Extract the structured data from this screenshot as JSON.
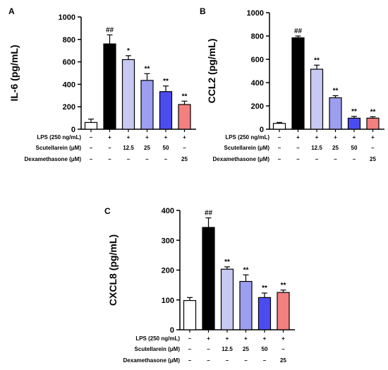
{
  "chart_data": [
    {
      "panel": "A",
      "type": "bar",
      "ylabel": "IL-6 (pg/mL)",
      "ylim": [
        0,
        1000
      ],
      "yticks": [
        0,
        200,
        400,
        600,
        800,
        1000
      ],
      "values": [
        60,
        760,
        620,
        435,
        335,
        220
      ],
      "errors": [
        30,
        80,
        35,
        60,
        50,
        30
      ],
      "significance": [
        "",
        "##",
        "*",
        "**",
        "**",
        "**"
      ],
      "colors": [
        "#ffffff",
        "#000000",
        "#c7c9f3",
        "#9c9ef0",
        "#4b4cf0",
        "#f47f7f"
      ],
      "conditions": [
        {
          "label": "LPS (250 ng/mL)",
          "values": [
            "–",
            "+",
            "+",
            "+",
            "+",
            "+"
          ]
        },
        {
          "label": "Scutellarein (μM)",
          "values": [
            "–",
            "–",
            "12.5",
            "25",
            "50",
            "–"
          ]
        },
        {
          "label": "Dexamethasone (μM)",
          "values": [
            "–",
            "–",
            "–",
            "–",
            "–",
            "25"
          ]
        }
      ]
    },
    {
      "panel": "B",
      "type": "bar",
      "ylabel": "CCL2 (pg/mL)",
      "ylim": [
        0,
        1000
      ],
      "yticks": [
        0,
        200,
        400,
        600,
        800,
        1000
      ],
      "values": [
        50,
        785,
        515,
        270,
        95,
        95
      ],
      "errors": [
        8,
        15,
        35,
        18,
        15,
        12
      ],
      "significance": [
        "",
        "##",
        "**",
        "**",
        "**",
        "**"
      ],
      "colors": [
        "#ffffff",
        "#000000",
        "#c7c9f3",
        "#9c9ef0",
        "#4b4cf0",
        "#f47f7f"
      ],
      "conditions": [
        {
          "label": "LPS (250 ng/mL)",
          "values": [
            "–",
            "+",
            "+",
            "+",
            "+",
            "+"
          ]
        },
        {
          "label": "Scutellarein (μM)",
          "values": [
            "–",
            "–",
            "12.5",
            "25",
            "50",
            "–"
          ]
        },
        {
          "label": "Dexamethasone (μM)",
          "values": [
            "–",
            "–",
            "–",
            "–",
            "–",
            "25"
          ]
        }
      ]
    },
    {
      "panel": "C",
      "type": "bar",
      "ylabel": "CXCL8 (pg/mL)",
      "ylim": [
        0,
        400
      ],
      "yticks": [
        0,
        100,
        200,
        300,
        400
      ],
      "values": [
        98,
        343,
        203,
        162,
        108,
        125
      ],
      "errors": [
        10,
        32,
        8,
        22,
        15,
        8
      ],
      "significance": [
        "",
        "##",
        "**",
        "**",
        "**",
        "**"
      ],
      "colors": [
        "#ffffff",
        "#000000",
        "#c7c9f3",
        "#9c9ef0",
        "#4b4cf0",
        "#f47f7f"
      ],
      "conditions": [
        {
          "label": "LPS (250 ng/mL)",
          "values": [
            "–",
            "+",
            "+",
            "+",
            "+",
            "+"
          ]
        },
        {
          "label": "Scutellarein (μM)",
          "values": [
            "–",
            "–",
            "12.5",
            "25",
            "50",
            "–"
          ]
        },
        {
          "label": "Dexamethasone (μM)",
          "values": [
            "–",
            "–",
            "–",
            "–",
            "–",
            "25"
          ]
        }
      ]
    }
  ]
}
